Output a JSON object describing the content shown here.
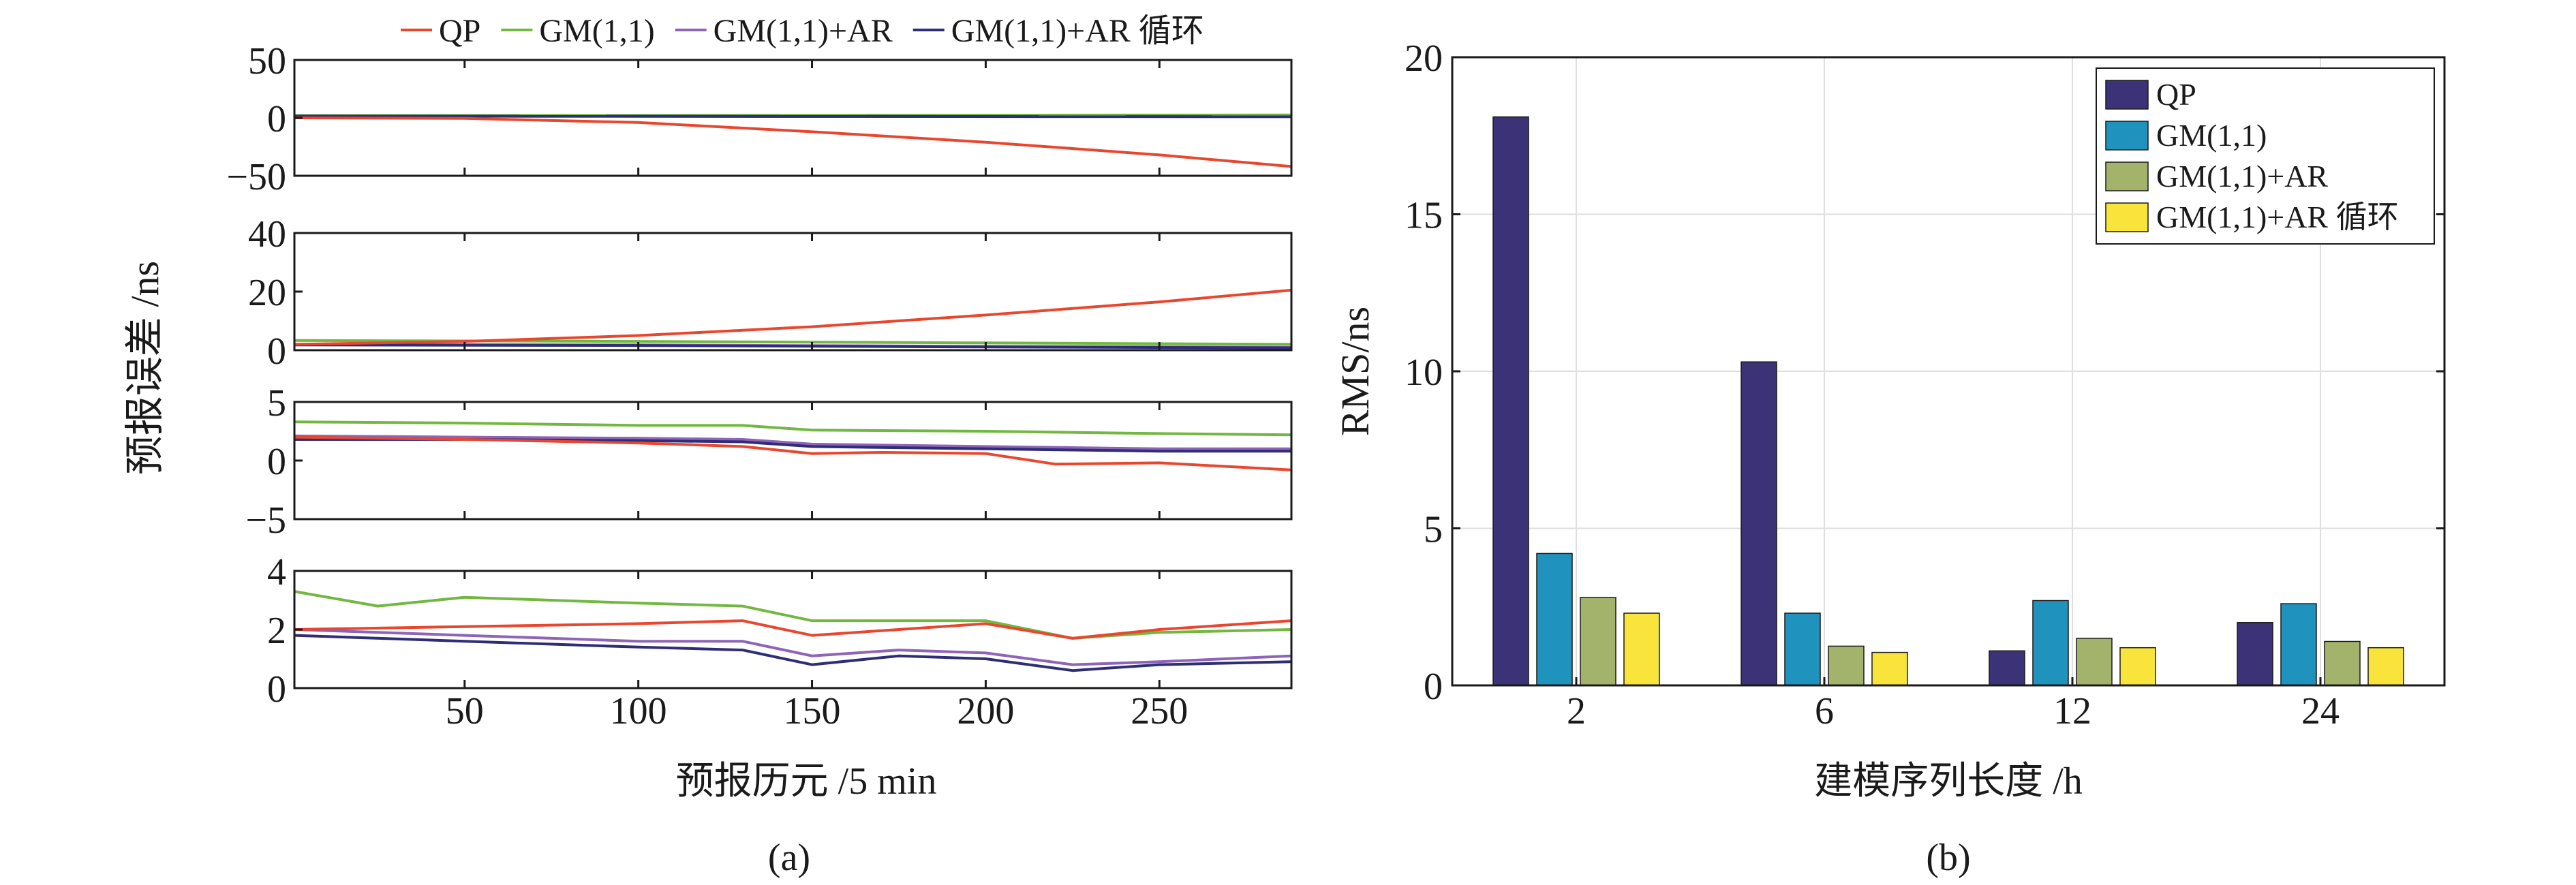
{
  "figure": {
    "left_caption": "(a)",
    "right_caption": "(b)"
  },
  "chart_data": [
    {
      "type": "line",
      "panel": "a",
      "xlabel": "预报历元 /5 min",
      "ylabel": "预报误差 /ns",
      "x_range": [
        1,
        288
      ],
      "x_ticks": [
        50,
        100,
        150,
        200,
        250
      ],
      "legend_placement": "top",
      "legend": [
        {
          "name": "QP",
          "color": "#e8472e"
        },
        {
          "name": "GM(1,1)",
          "color": "#72b840"
        },
        {
          "name": "GM(1,1)+AR",
          "color": "#8d64b8"
        },
        {
          "name": "GM(1,1)+AR 循环",
          "color": "#2e2d77"
        }
      ],
      "subplots": [
        {
          "ylim": [
            -50,
            50
          ],
          "y_ticks": [
            -50,
            0,
            50
          ],
          "series": [
            {
              "name": "QP",
              "x": [
                1,
                50,
                100,
                150,
                200,
                250,
                288
              ],
              "y": [
                0,
                -0.5,
                -4,
                -12,
                -21,
                -32,
                -42
              ]
            },
            {
              "name": "GM(1,1)",
              "x": [
                1,
                288
              ],
              "y": [
                2,
                2.5
              ]
            },
            {
              "name": "GM(1,1)+AR",
              "x": [
                1,
                288
              ],
              "y": [
                1.5,
                1
              ]
            },
            {
              "name": "GM(1,1)+AR 循环",
              "x": [
                1,
                288
              ],
              "y": [
                1.5,
                1
              ]
            }
          ]
        },
        {
          "ylim": [
            0,
            40
          ],
          "y_ticks": [
            0,
            20,
            40
          ],
          "series": [
            {
              "name": "QP",
              "x": [
                1,
                50,
                100,
                150,
                200,
                250,
                288
              ],
              "y": [
                2,
                3,
                5,
                8,
                12,
                16.5,
                20.5
              ]
            },
            {
              "name": "GM(1,1)",
              "x": [
                1,
                100,
                200,
                288
              ],
              "y": [
                3.3,
                3,
                2.5,
                2
              ]
            },
            {
              "name": "GM(1,1)+AR",
              "x": [
                1,
                100,
                200,
                288
              ],
              "y": [
                2,
                1.8,
                1.3,
                1
              ]
            },
            {
              "name": "GM(1,1)+AR 循环",
              "x": [
                1,
                100,
                200,
                288
              ],
              "y": [
                1.8,
                1.6,
                1.1,
                0.8
              ]
            }
          ]
        },
        {
          "ylim": [
            -5,
            5
          ],
          "y_ticks": [
            -5,
            0,
            5
          ],
          "series": [
            {
              "name": "QP",
              "x": [
                1,
                50,
                100,
                130,
                150,
                170,
                200,
                220,
                250,
                288
              ],
              "y": [
                2,
                1.8,
                1.5,
                1.2,
                0.6,
                0.7,
                0.6,
                -0.3,
                -0.2,
                -0.8
              ]
            },
            {
              "name": "GM(1,1)",
              "x": [
                1,
                50,
                100,
                130,
                150,
                200,
                250,
                288
              ],
              "y": [
                3.3,
                3.2,
                3,
                3,
                2.6,
                2.5,
                2.3,
                2.2
              ]
            },
            {
              "name": "GM(1,1)+AR",
              "x": [
                1,
                50,
                100,
                130,
                150,
                200,
                250,
                288
              ],
              "y": [
                2.1,
                2,
                1.9,
                1.8,
                1.4,
                1.2,
                1,
                1
              ]
            },
            {
              "name": "GM(1,1)+AR 循环",
              "x": [
                1,
                50,
                100,
                130,
                150,
                200,
                250,
                288
              ],
              "y": [
                1.8,
                1.8,
                1.7,
                1.6,
                1.2,
                1,
                0.8,
                0.8
              ]
            }
          ]
        },
        {
          "ylim": [
            0,
            4
          ],
          "y_ticks": [
            0,
            2,
            4
          ],
          "series": [
            {
              "name": "QP",
              "x": [
                1,
                50,
                100,
                130,
                150,
                175,
                200,
                225,
                250,
                288
              ],
              "y": [
                2,
                2.1,
                2.2,
                2.3,
                1.8,
                2,
                2.2,
                1.7,
                2,
                2.3
              ]
            },
            {
              "name": "GM(1,1)",
              "x": [
                1,
                25,
                50,
                100,
                130,
                150,
                200,
                225,
                250,
                288
              ],
              "y": [
                3.3,
                2.8,
                3.1,
                2.9,
                2.8,
                2.3,
                2.3,
                1.7,
                1.9,
                2
              ]
            },
            {
              "name": "GM(1,1)+AR",
              "x": [
                1,
                50,
                100,
                130,
                150,
                175,
                200,
                225,
                250,
                288
              ],
              "y": [
                2,
                1.8,
                1.6,
                1.6,
                1.1,
                1.3,
                1.2,
                0.8,
                0.9,
                1.1
              ]
            },
            {
              "name": "GM(1,1)+AR 循环",
              "x": [
                1,
                50,
                100,
                130,
                150,
                175,
                200,
                225,
                250,
                288
              ],
              "y": [
                1.8,
                1.6,
                1.4,
                1.3,
                0.8,
                1.1,
                1,
                0.6,
                0.8,
                0.9
              ]
            }
          ]
        }
      ]
    },
    {
      "type": "bar",
      "panel": "b",
      "categories": [
        "2",
        "6",
        "12",
        "24"
      ],
      "xlabel": "建模序列长度 /h",
      "ylabel": "RMS/ns",
      "ylim": [
        0,
        20
      ],
      "y_ticks": [
        0,
        5,
        10,
        15,
        20
      ],
      "grid": true,
      "legend_placement": "top-right",
      "series": [
        {
          "name": "QP",
          "color": "#3b3277",
          "values": [
            18.1,
            10.3,
            1.1,
            2.0
          ]
        },
        {
          "name": "GM(1,1)",
          "color": "#1f93be",
          "values": [
            4.2,
            2.3,
            2.7,
            2.6
          ]
        },
        {
          "name": "GM(1,1)+AR",
          "color": "#a3b36b",
          "values": [
            2.8,
            1.25,
            1.5,
            1.4
          ]
        },
        {
          "name": "GM(1,1)+AR 循环",
          "color": "#f8e43a",
          "values": [
            2.3,
            1.05,
            1.2,
            1.2
          ]
        }
      ]
    }
  ]
}
